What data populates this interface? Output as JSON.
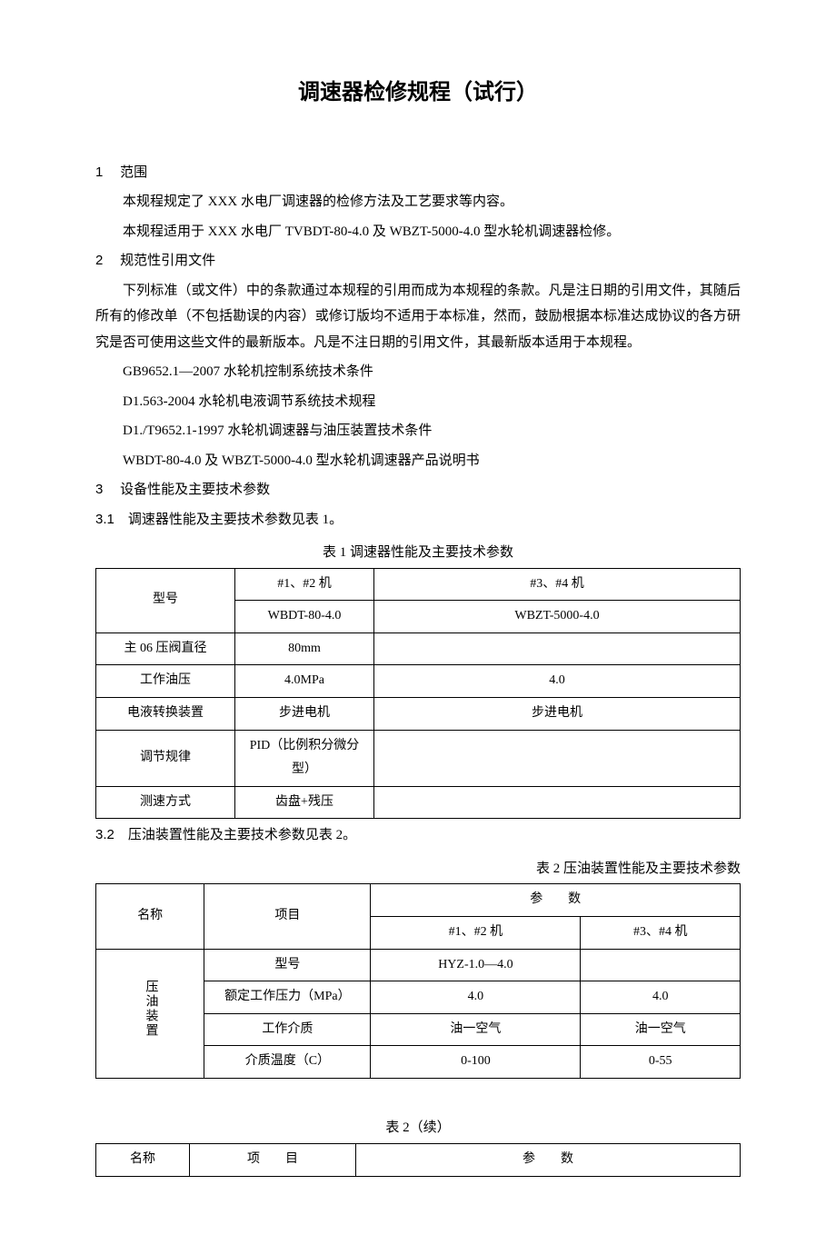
{
  "title": "调速器检修规程（试行）",
  "sections": {
    "s1": {
      "num": "1",
      "label": "范围"
    },
    "s2": {
      "num": "2",
      "label": "规范性引用文件"
    },
    "s3": {
      "num": "3",
      "label": "设备性能及主要技术参数"
    },
    "s3_1": {
      "num": "3.1",
      "text": "调速器性能及主要技术参数见表 1。"
    },
    "s3_2": {
      "num": "3.2",
      "text": "压油装置性能及主要技术参数见表 2。"
    }
  },
  "body": {
    "p1": "本规程规定了 XXX 水电厂调速器的检修方法及工艺要求等内容。",
    "p2": "本规程适用于 XXX 水电厂 TVBDT-80-4.0 及 WBZT-5000-4.0 型水轮机调速器检修。",
    "p3": "下列标准（或文件）中的条款通过本规程的引用而成为本规程的条款。凡是注日期的引用文件，其随后所有的修改单（不包括勘误的内容）或修订版均不适用于本标准，然而，鼓励根据本标准达成协议的各方研究是否可使用这些文件的最新版本。凡是不注日期的引用文件，其最新版本适用于本规程。",
    "ref1": "GB9652.1—2007 水轮机控制系统技术条件",
    "ref2": "D1.563-2004 水轮机电液调节系统技术规程",
    "ref3": "D1./T9652.1-1997 水轮机调速器与油压装置技术条件",
    "ref4": "WBDT-80-4.0 及 WBZT-5000-4.0 型水轮机调速器产品说明书"
  },
  "table1": {
    "caption": "表 1 调速器性能及主要技术参数",
    "head": {
      "model": "型号",
      "m12": "#1、#2 机",
      "m34": "#3、#4 机",
      "v12": "WBDT-80-4.0",
      "v34": "WBZT-5000-4.0"
    },
    "rows": [
      {
        "label": "主 06 压阀直径",
        "v1": "80mm",
        "v2": ""
      },
      {
        "label": "工作油压",
        "v1": "4.0MPa",
        "v2": "4.0"
      },
      {
        "label": "电液转换装置",
        "v1": "步进电机",
        "v2": "步进电机"
      },
      {
        "label": "调节规律",
        "v1": "PID（比例积分微分型）",
        "v2": ""
      },
      {
        "label": "测速方式",
        "v1": "齿盘+残压",
        "v2": ""
      }
    ]
  },
  "table2": {
    "caption": "表 2 压油装置性能及主要技术参数",
    "head": {
      "name": "名称",
      "item": "项目",
      "param": "参　　数",
      "m12": "#1、#2 机",
      "m34": "#3、#4 机"
    },
    "groupLabel": "压油装置",
    "rows": [
      {
        "item": "型号",
        "v1": "HYZ-1.0—4.0",
        "v2": ""
      },
      {
        "item": "额定工作压力（MPa）",
        "v1": "4.0",
        "v2": "4.0"
      },
      {
        "item": "工作介质",
        "v1": "油一空气",
        "v2": "油一空气"
      },
      {
        "item": "介质温度（C）",
        "v1": "0-100",
        "v2": "0-55"
      }
    ]
  },
  "table3": {
    "caption": "表 2（续）",
    "head": {
      "name": "名称",
      "item": "项　　目",
      "param": "参　　数"
    }
  }
}
